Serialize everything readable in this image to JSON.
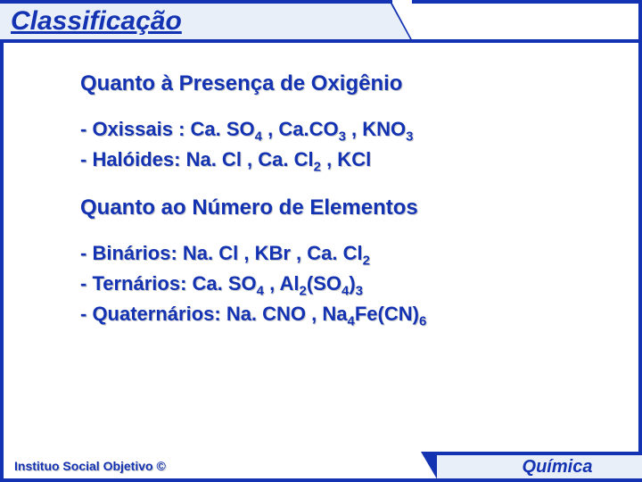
{
  "title": "Classificação",
  "section1": {
    "heading": "Quanto à Presença de Oxigênio",
    "line1_label": "- Oxissais : ",
    "line1_f1": "Ca. SO",
    "line1_s1": "4",
    "line1_sep1": " , ",
    "line1_f2": "Ca.CO",
    "line1_s2": "3",
    "line1_sep2": " , ",
    "line1_f3": "KNO",
    "line1_s3": "3",
    "line2_label": "- Halóides: ",
    "line2_f1": "Na. Cl , Ca. Cl",
    "line2_s1": "2",
    "line2_sep1": " , KCl"
  },
  "section2": {
    "heading": "Quanto ao Número de Elementos",
    "line1_label": "- Binários: ",
    "line1_f1": "Na. Cl , KBr , Ca. Cl",
    "line1_s1": "2",
    "line2_label": "- Ternários: ",
    "line2_f1": "Ca. SO",
    "line2_s1": "4",
    "line2_sep1": " , Al",
    "line2_s2": "2",
    "line2_f2": "(SO",
    "line2_s3": "4",
    "line2_f3": ")",
    "line2_s4": "3",
    "line3_label": "- Quaternários: ",
    "line3_f1": "Na. CNO , Na",
    "line3_s1": "4",
    "line3_f2": "Fe(CN)",
    "line3_s2": "6"
  },
  "footer_left": "Instituo Social Objetivo ©",
  "footer_right": "Química"
}
